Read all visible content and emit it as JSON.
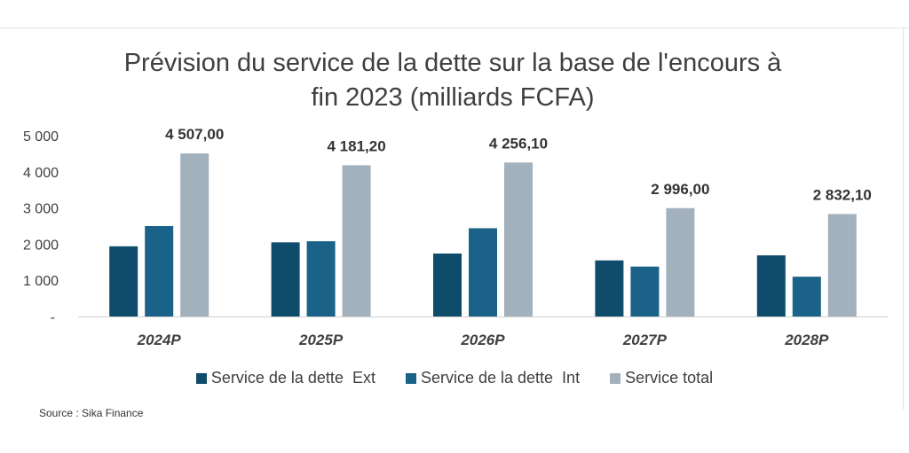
{
  "chart_data": {
    "type": "bar",
    "title": "Prévision du service de la dette sur la base de l'encours à fin 2023 (milliards FCFA)",
    "title_lines": [
      "Prévision du service de la dette sur la base de l'encours à",
      "fin 2023 (milliards FCFA)"
    ],
    "categories": [
      "2024P",
      "2025P",
      "2026P",
      "2027P",
      "2028P"
    ],
    "series": [
      {
        "name": "Service de la dette  Ext",
        "color": "#0f4c6b",
        "values": [
          1940,
          2050,
          1740,
          1550,
          1690
        ]
      },
      {
        "name": "Service de la dette  Int",
        "color": "#1a6287",
        "values": [
          2500,
          2080,
          2440,
          1380,
          1100
        ]
      },
      {
        "name": "Service total",
        "color": "#a3b1bd",
        "values": [
          4507,
          4181.2,
          4256.1,
          2996,
          2832.1
        ]
      }
    ],
    "data_labels": [
      "4 507,00",
      "4 181,20",
      "4 256,10",
      "2 996,00",
      "2 832,10"
    ],
    "y_ticks": [
      0,
      1000,
      2000,
      3000,
      4000,
      5000
    ],
    "y_tick_labels": [
      "-",
      "1 000",
      "2 000",
      "3 000",
      "4 000",
      "5 000"
    ],
    "ylim": [
      0,
      5000
    ],
    "xlabel": "",
    "ylabel": "",
    "grid": false,
    "legend_position": "bottom"
  },
  "source": "Source : Sika Finance"
}
